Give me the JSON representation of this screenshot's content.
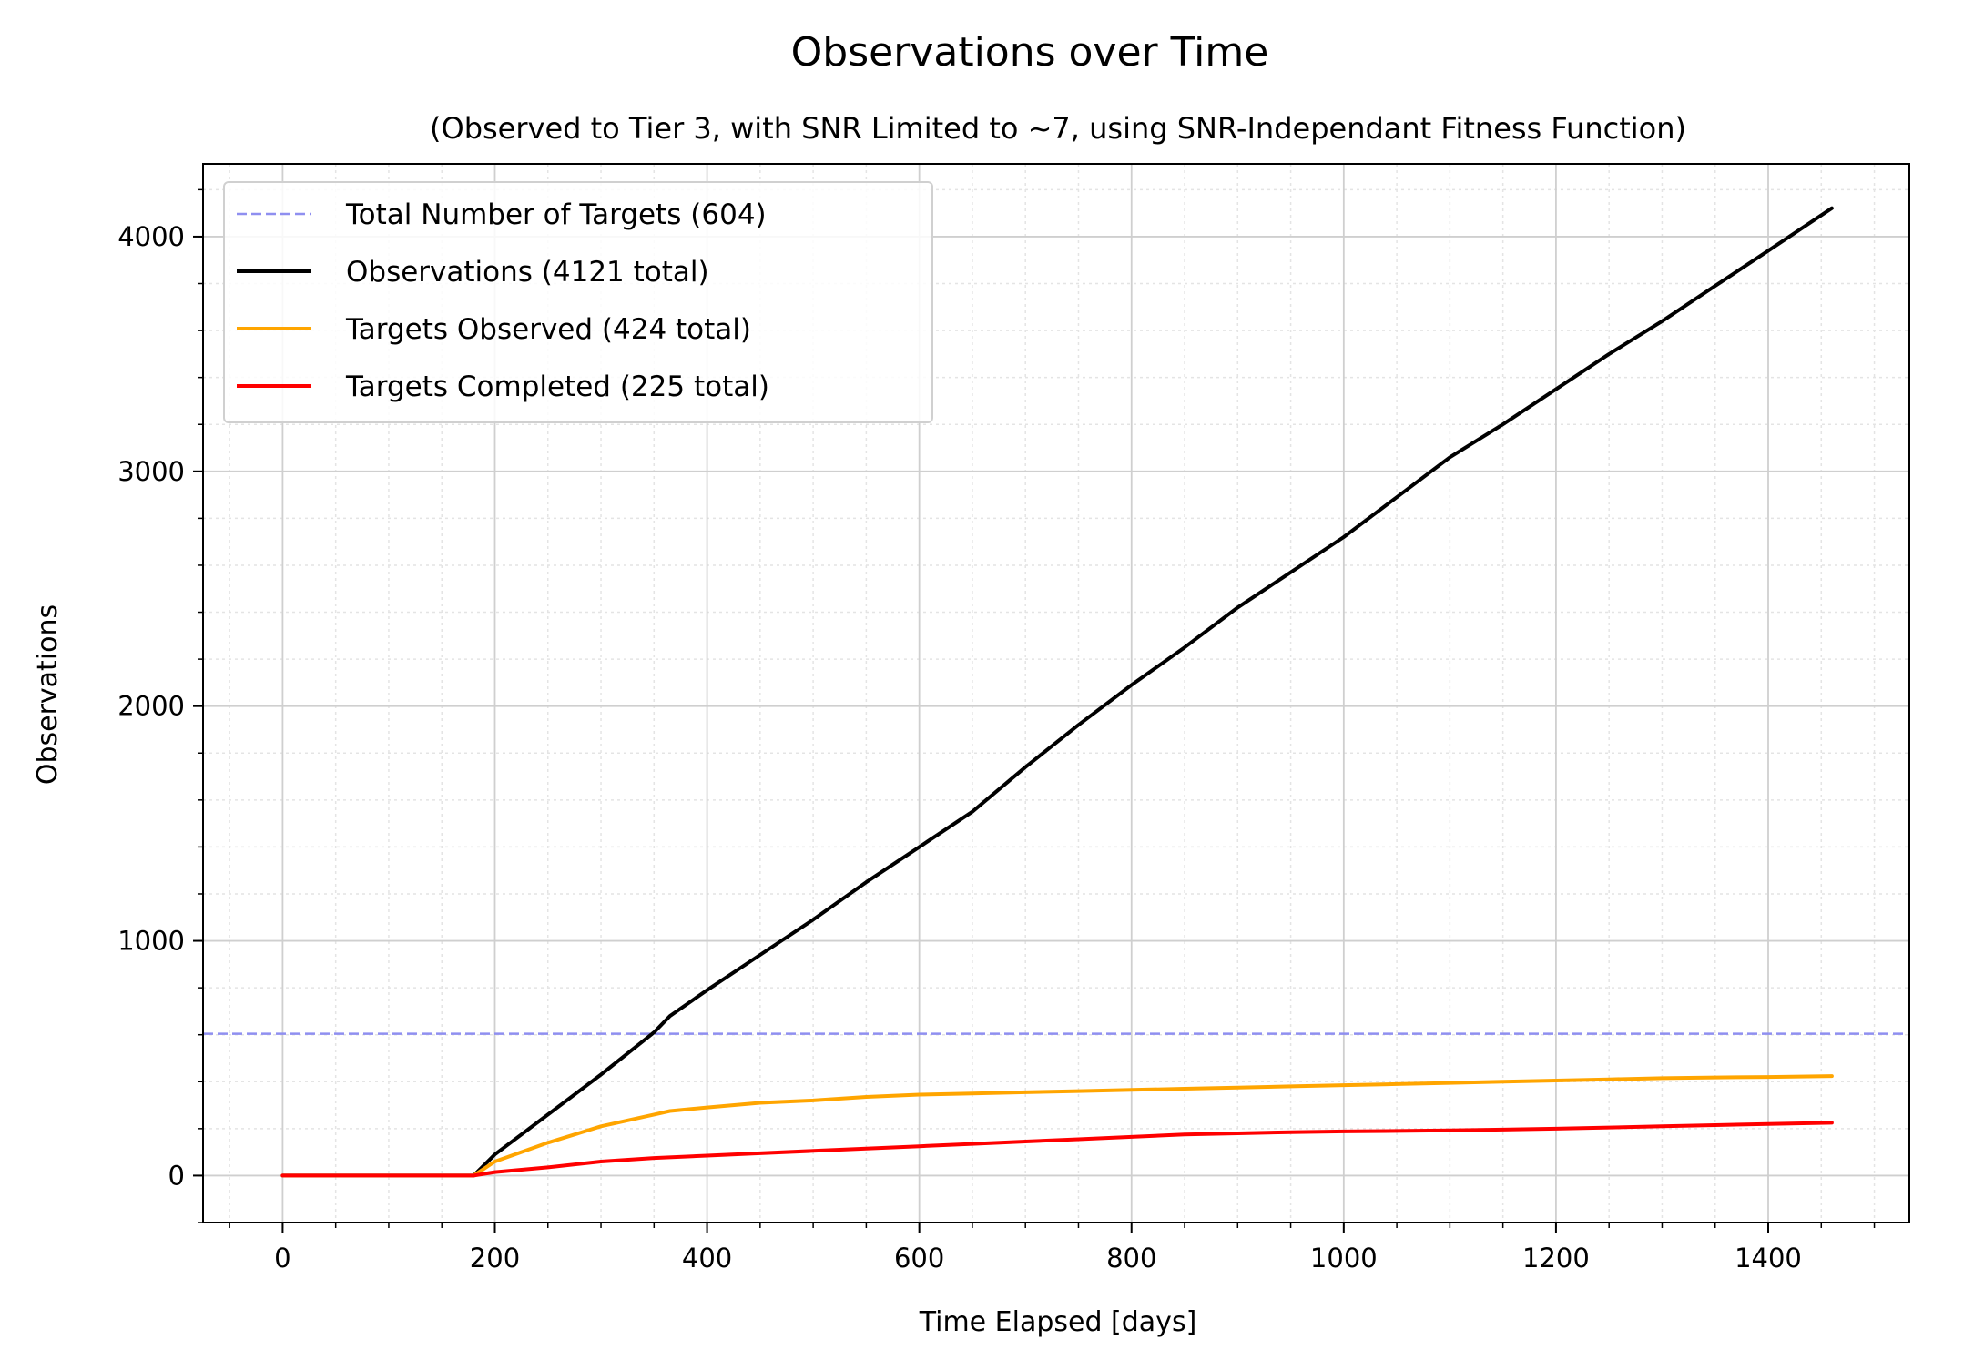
{
  "chart_data": {
    "type": "line",
    "title": "Observations over Time",
    "subtitle": "(Observed to Tier 3, with SNR Limited to ~7, using SNR-Independant Fitness Function)",
    "xlabel": "Time Elapsed [days]",
    "ylabel": "Observations",
    "xlim": [
      -75,
      1533
    ],
    "ylim": [
      -200,
      4310
    ],
    "xticks": [
      0,
      200,
      400,
      600,
      800,
      1000,
      1200,
      1400
    ],
    "yticks": [
      0,
      1000,
      2000,
      3000,
      4000
    ],
    "grid": true,
    "minor_grid": true,
    "legend_position": "upper-left",
    "reference_line": {
      "name": "Total Number of Targets (604)",
      "value": 604,
      "color": "#8f8ff0",
      "style": "dashed"
    },
    "series": [
      {
        "name": "Observations (4121 total)",
        "color": "#000000",
        "x": [
          0,
          180,
          200,
          250,
          300,
          350,
          365,
          400,
          450,
          500,
          550,
          600,
          650,
          700,
          750,
          800,
          850,
          900,
          950,
          1000,
          1050,
          1100,
          1150,
          1200,
          1250,
          1300,
          1350,
          1400,
          1460
        ],
        "y": [
          0,
          0,
          90,
          260,
          430,
          610,
          680,
          790,
          940,
          1090,
          1250,
          1400,
          1550,
          1740,
          1920,
          2090,
          2250,
          2420,
          2570,
          2720,
          2890,
          3060,
          3200,
          3350,
          3500,
          3640,
          3790,
          3940,
          4121
        ]
      },
      {
        "name": "Targets Observed (424 total)",
        "color": "#ffa500",
        "x": [
          0,
          180,
          200,
          250,
          300,
          350,
          365,
          400,
          450,
          500,
          550,
          600,
          650,
          700,
          750,
          800,
          850,
          900,
          950,
          1000,
          1050,
          1100,
          1150,
          1200,
          1250,
          1300,
          1350,
          1400,
          1460
        ],
        "y": [
          0,
          0,
          60,
          140,
          210,
          260,
          275,
          290,
          310,
          320,
          335,
          345,
          350,
          355,
          360,
          365,
          370,
          375,
          380,
          385,
          390,
          395,
          400,
          405,
          410,
          415,
          418,
          420,
          424
        ]
      },
      {
        "name": "Targets Completed (225 total)",
        "color": "#ff0000",
        "x": [
          0,
          180,
          200,
          250,
          300,
          350,
          400,
          450,
          500,
          550,
          600,
          650,
          700,
          750,
          800,
          850,
          900,
          950,
          1000,
          1050,
          1100,
          1150,
          1200,
          1250,
          1300,
          1350,
          1400,
          1460
        ],
        "y": [
          0,
          0,
          15,
          35,
          60,
          75,
          85,
          95,
          105,
          115,
          125,
          135,
          145,
          155,
          165,
          175,
          180,
          185,
          188,
          190,
          193,
          196,
          200,
          205,
          210,
          215,
          220,
          225
        ]
      }
    ]
  }
}
